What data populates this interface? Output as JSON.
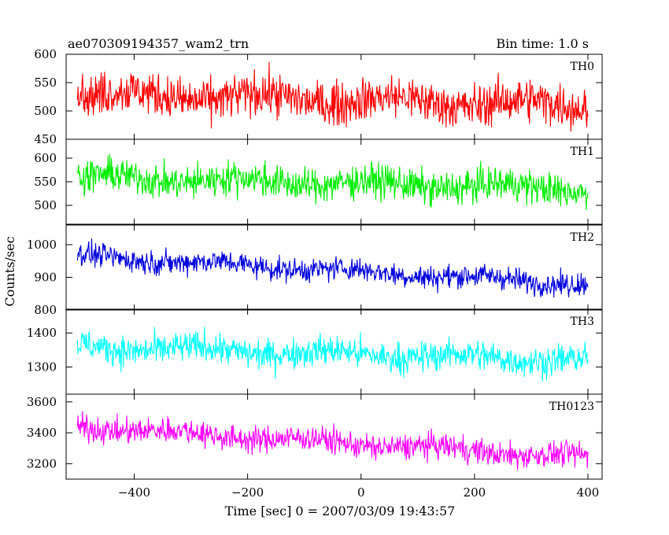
{
  "chart_data": {
    "type": "line",
    "title": "ae070309194357_wam2_trn",
    "subtitle": "Bin time: 1.0 s",
    "xlabel": "Time [sec] 0 = 2007/03/09 19:43:57",
    "ylabel": "Counts/sec",
    "xlim": [
      -520,
      425
    ],
    "x_range": [
      -500,
      400
    ],
    "x_step": 1.0,
    "x_ticks": [
      -400,
      -200,
      0,
      200,
      400
    ],
    "grid": false,
    "legend": "none",
    "series": [
      {
        "name": "TH0",
        "color": "#ff0000",
        "ylim": [
          450,
          600
        ],
        "y_ticks": [
          450,
          500,
          550,
          600
        ],
        "trend": [
          530,
          510
        ],
        "amplitude": 32
      },
      {
        "name": "TH1",
        "color": "#00ee00",
        "ylim": [
          460,
          640
        ],
        "y_ticks": [
          500,
          550,
          600
        ],
        "trend": [
          560,
          535
        ],
        "amplitude": 30
      },
      {
        "name": "TH2",
        "color": "#0000dd",
        "ylim": [
          800,
          1060
        ],
        "y_ticks": [
          800,
          900,
          1000
        ],
        "trend": [
          965,
          880
        ],
        "amplitude": 30
      },
      {
        "name": "TH3",
        "color": "#00ffff",
        "ylim": [
          1220,
          1470
        ],
        "y_ticks": [
          1300,
          1400
        ],
        "trend": [
          1360,
          1320
        ],
        "amplitude": 38
      },
      {
        "name": "TH0123",
        "color": "#ff00ff",
        "ylim": [
          3100,
          3650
        ],
        "y_ticks": [
          3200,
          3400,
          3600
        ],
        "trend": [
          3440,
          3240
        ],
        "amplitude": 70
      }
    ]
  }
}
